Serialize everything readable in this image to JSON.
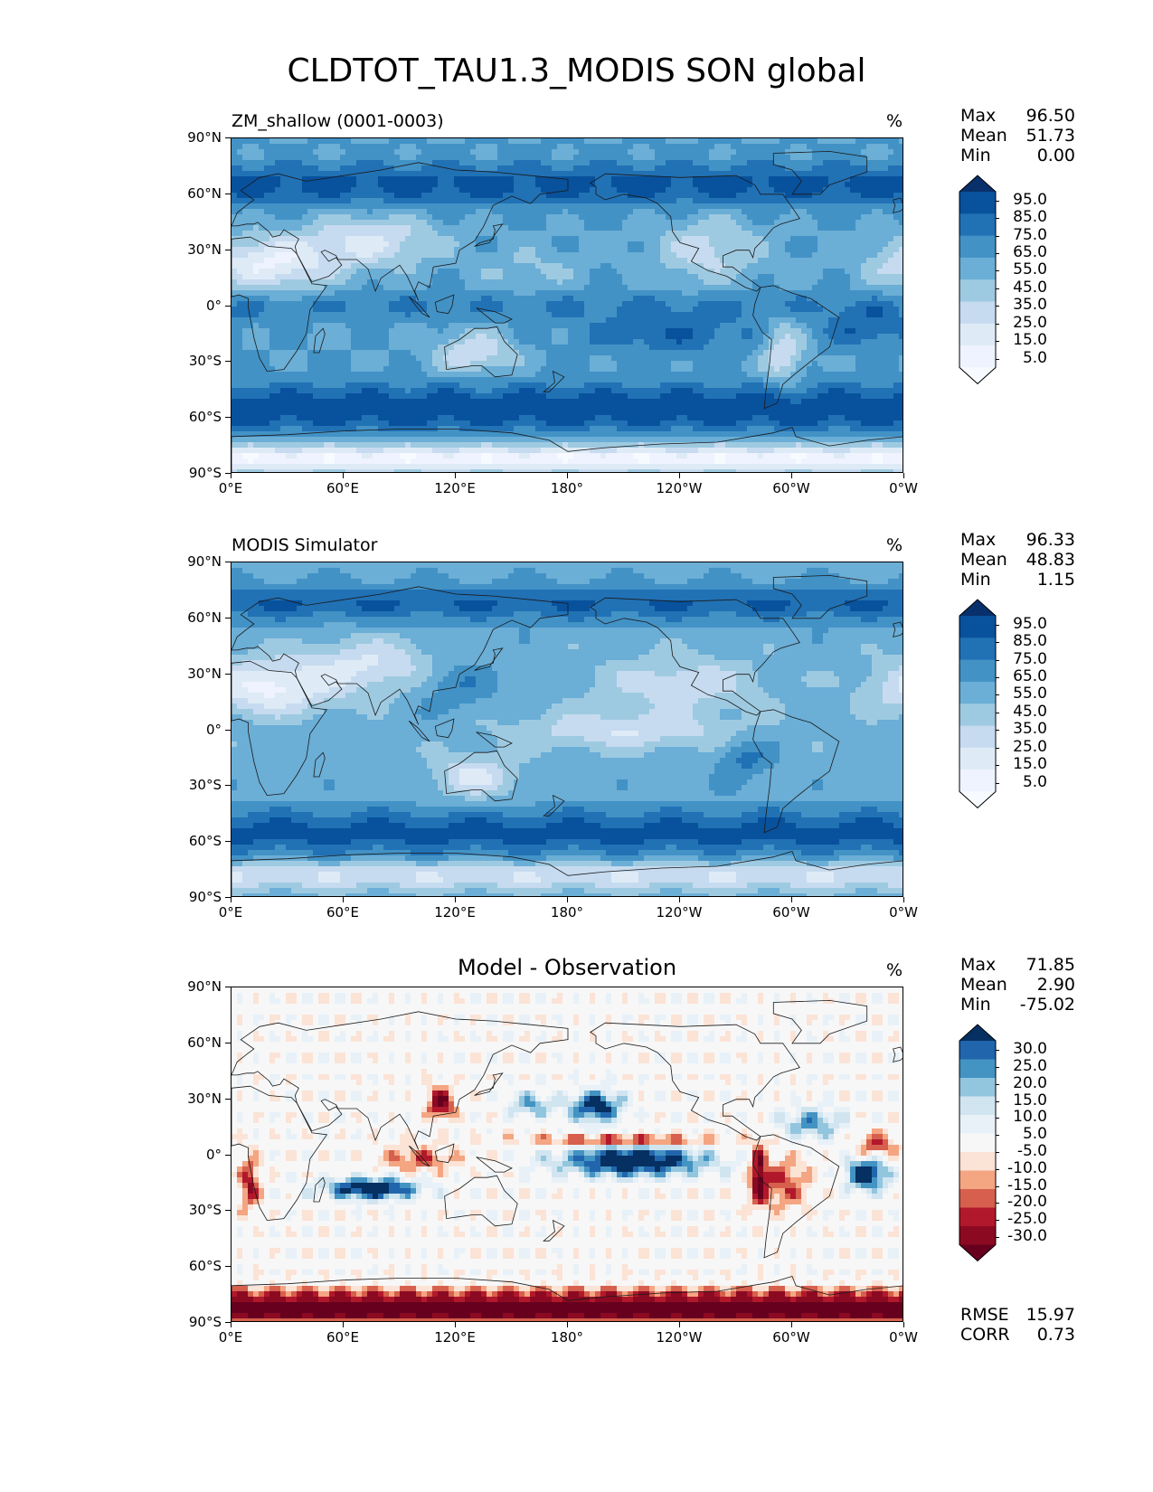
{
  "figure_title": "CLDTOT_TAU1.3_MODIS SON global",
  "lat_ticks": [
    "90°N",
    "60°N",
    "30°N",
    "0°",
    "30°S",
    "60°S",
    "90°S"
  ],
  "lon_ticks": [
    "0°E",
    "60°E",
    "120°E",
    "180°",
    "120°W",
    "60°W",
    "0°W"
  ],
  "panels": [
    {
      "title": "ZM_shallow (0001-0003)",
      "units": "%",
      "stats": {
        "max_label": "Max",
        "max": "96.50",
        "mean_label": "Mean",
        "mean": "51.73",
        "min_label": "Min",
        "min": "0.00"
      },
      "colorbar_labels": [
        "95.0",
        "85.0",
        "75.0",
        "65.0",
        "55.0",
        "45.0",
        "35.0",
        "25.0",
        "15.0",
        "5.0"
      ],
      "colorbar_colors": [
        "#08306b",
        "#08519c",
        "#2171b5",
        "#4292c6",
        "#6baed6",
        "#9ecae1",
        "#c6dbef",
        "#deebf7",
        "#eff3ff",
        "#f7fbff"
      ]
    },
    {
      "title": "MODIS Simulator",
      "units": "%",
      "stats": {
        "max_label": "Max",
        "max": "96.33",
        "mean_label": "Mean",
        "mean": "48.83",
        "min_label": "Min",
        "min": "1.15"
      },
      "colorbar_labels": [
        "95.0",
        "85.0",
        "75.0",
        "65.0",
        "55.0",
        "45.0",
        "35.0",
        "25.0",
        "15.0",
        "5.0"
      ],
      "colorbar_colors": [
        "#08306b",
        "#08519c",
        "#2171b5",
        "#4292c6",
        "#6baed6",
        "#9ecae1",
        "#c6dbef",
        "#deebf7",
        "#eff3ff",
        "#f7fbff"
      ]
    },
    {
      "title": "Model - Observation",
      "units": "%",
      "stats": {
        "max_label": "Max",
        "max": "71.85",
        "mean_label": "Mean",
        "mean": "2.90",
        "min_label": "Min",
        "min": "-75.02"
      },
      "extra_stats": {
        "rmse_label": "RMSE",
        "rmse": "15.97",
        "corr_label": "CORR",
        "corr": "0.73"
      },
      "colorbar_labels": [
        "30.0",
        "25.0",
        "20.0",
        "15.0",
        "10.0",
        "5.0",
        "-5.0",
        "-10.0",
        "-15.0",
        "-20.0",
        "-25.0",
        "-30.0"
      ],
      "colorbar_colors": [
        "#053061",
        "#2166ac",
        "#4393c3",
        "#92c5de",
        "#d1e5f0",
        "#e8f1f7",
        "#f7f7f7",
        "#fbe3d6",
        "#f4a582",
        "#d6604d",
        "#b2182b",
        "#8b0a22",
        "#67001f"
      ]
    }
  ]
}
